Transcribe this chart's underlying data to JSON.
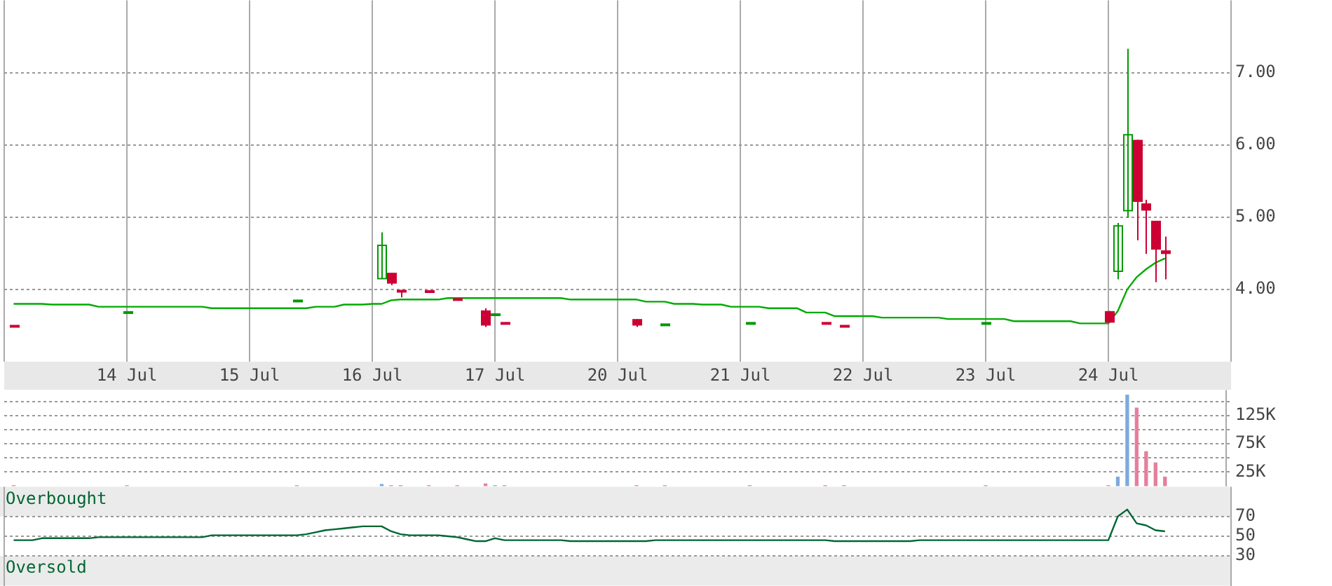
{
  "chart_data": [
    {
      "type": "candlestick",
      "categories": [
        null,
        null,
        null,
        null,
        null,
        null,
        null,
        null,
        null,
        null,
        null,
        null,
        null,
        "14 Jul",
        null,
        null,
        null,
        null,
        null,
        null,
        null,
        null,
        null,
        null,
        null,
        null,
        "15 Jul",
        null,
        null,
        null,
        null,
        null,
        null,
        null,
        null,
        null,
        null,
        null,
        null,
        "16 Jul",
        null,
        null,
        null,
        null,
        null,
        null,
        null,
        null,
        null,
        null,
        null,
        null,
        "17 Jul",
        null,
        null,
        null,
        null,
        null,
        null,
        null,
        null,
        null,
        null,
        null,
        null,
        "20 Jul",
        null,
        null,
        null,
        null,
        null,
        null,
        null,
        null,
        null,
        null,
        null,
        null,
        "21 Jul",
        null,
        null,
        null,
        null,
        null,
        null,
        null,
        null,
        null,
        null,
        null,
        null,
        "22 Jul",
        null,
        null,
        null,
        null,
        null,
        null,
        null,
        null,
        null,
        null,
        null,
        null,
        "23 Jul",
        null,
        null,
        null,
        null,
        null,
        null,
        null,
        null,
        null,
        null,
        null,
        null,
        "24 Jul",
        null,
        null,
        null,
        null,
        null,
        null,
        null,
        null,
        null,
        null,
        null,
        null,
        null
      ],
      "ohlc": [
        null,
        [
          3.49,
          3.49,
          3.49,
          3.49
        ],
        null,
        null,
        null,
        null,
        null,
        null,
        null,
        null,
        null,
        null,
        null,
        [
          3.68,
          3.68,
          3.68,
          3.68
        ],
        null,
        null,
        null,
        null,
        null,
        null,
        null,
        null,
        null,
        null,
        null,
        null,
        null,
        null,
        null,
        null,
        null,
        [
          3.84,
          3.84,
          3.84,
          3.84
        ],
        null,
        null,
        null,
        null,
        null,
        null,
        null,
        null,
        [
          4.15,
          4.79,
          4.15,
          4.61
        ],
        [
          4.23,
          4.23,
          4.06,
          4.08
        ],
        [
          3.99,
          3.99,
          3.89,
          3.96
        ],
        null,
        null,
        [
          3.97,
          3.97,
          3.97,
          3.97
        ],
        null,
        null,
        [
          3.87,
          3.87,
          3.85,
          3.85
        ],
        null,
        null,
        [
          3.71,
          3.74,
          3.48,
          3.5
        ],
        [
          3.65,
          3.65,
          3.65,
          3.65
        ],
        [
          3.53,
          3.53,
          3.53,
          3.53
        ],
        null,
        null,
        null,
        null,
        null,
        null,
        null,
        null,
        null,
        null,
        null,
        null,
        null,
        [
          3.59,
          3.59,
          3.48,
          3.5
        ],
        null,
        null,
        [
          3.51,
          3.51,
          3.51,
          3.51
        ],
        null,
        null,
        null,
        null,
        null,
        null,
        null,
        null,
        [
          3.53,
          3.53,
          3.53,
          3.53
        ],
        null,
        null,
        null,
        null,
        null,
        null,
        null,
        [
          3.53,
          3.53,
          3.53,
          3.53
        ],
        null,
        [
          3.49,
          3.49,
          3.49,
          3.49
        ],
        null,
        null,
        null,
        null,
        null,
        null,
        null,
        null,
        null,
        null,
        null,
        null,
        null,
        null,
        [
          3.53,
          3.53,
          3.53,
          3.53
        ],
        null,
        null,
        null,
        null,
        null,
        null,
        null,
        null,
        null,
        null,
        null,
        null,
        [
          3.7,
          3.7,
          3.54,
          3.54
        ],
        [
          4.25,
          4.92,
          4.14,
          4.88
        ],
        [
          5.09,
          7.33,
          4.99,
          6.14
        ],
        [
          6.07,
          6.07,
          4.68,
          5.21
        ],
        [
          5.19,
          5.24,
          4.49,
          5.09
        ],
        [
          4.95,
          4.95,
          4.1,
          4.55
        ],
        [
          4.54,
          4.73,
          4.14,
          4.49
        ],
        null,
        null,
        null,
        null,
        null,
        null,
        null
      ],
      "colors": [
        null,
        "#cc0033",
        null,
        null,
        null,
        null,
        null,
        null,
        null,
        null,
        null,
        null,
        null,
        "#009900",
        null,
        null,
        null,
        null,
        null,
        null,
        null,
        null,
        null,
        null,
        null,
        null,
        null,
        null,
        null,
        null,
        null,
        "#009900",
        null,
        null,
        null,
        null,
        null,
        null,
        null,
        null,
        "#009900",
        "#cc0033",
        "#cc0033",
        null,
        null,
        "#cc0033",
        null,
        null,
        "#cc0033",
        null,
        null,
        "#cc0033",
        "#009900",
        "#cc0033",
        null,
        null,
        null,
        null,
        null,
        null,
        null,
        null,
        null,
        null,
        null,
        null,
        null,
        "#cc0033",
        null,
        null,
        "#009900",
        null,
        null,
        null,
        null,
        null,
        null,
        null,
        null,
        "#009900",
        null,
        null,
        null,
        null,
        null,
        null,
        null,
        "#cc0033",
        null,
        "#cc0033",
        null,
        null,
        null,
        null,
        null,
        null,
        null,
        null,
        null,
        null,
        null,
        null,
        null,
        null,
        "#009900",
        null,
        null,
        null,
        null,
        null,
        null,
        null,
        null,
        null,
        null,
        null,
        null,
        "#cc0033",
        "#009900",
        "#009900",
        "#cc0033",
        "#cc0033",
        "#cc0033",
        "#cc0033",
        null,
        null,
        null,
        null,
        null,
        null,
        null
      ],
      "series": [
        {
          "type": "line",
          "color": "#00aa00",
          "values": [
            null,
            3.8,
            3.8,
            3.8,
            3.8,
            3.79,
            3.79,
            3.79,
            3.79,
            3.79,
            3.76,
            3.76,
            3.76,
            3.76,
            3.76,
            3.76,
            3.76,
            3.76,
            3.76,
            3.76,
            3.76,
            3.76,
            3.74,
            3.74,
            3.74,
            3.74,
            3.74,
            3.74,
            3.74,
            3.74,
            3.74,
            3.74,
            3.74,
            3.76,
            3.76,
            3.76,
            3.79,
            3.79,
            3.79,
            3.8,
            3.8,
            3.85,
            3.86,
            3.86,
            3.86,
            3.86,
            3.86,
            3.88,
            3.88,
            3.88,
            3.88,
            3.88,
            3.88,
            3.88,
            3.88,
            3.88,
            3.88,
            3.88,
            3.88,
            3.88,
            3.86,
            3.86,
            3.86,
            3.86,
            3.86,
            3.86,
            3.86,
            3.86,
            3.83,
            3.83,
            3.83,
            3.8,
            3.8,
            3.8,
            3.79,
            3.79,
            3.79,
            3.76,
            3.76,
            3.76,
            3.76,
            3.74,
            3.74,
            3.74,
            3.74,
            3.68,
            3.68,
            3.68,
            3.63,
            3.63,
            3.63,
            3.63,
            3.63,
            3.61,
            3.61,
            3.61,
            3.61,
            3.61,
            3.61,
            3.61,
            3.59,
            3.59,
            3.59,
            3.59,
            3.59,
            3.59,
            3.59,
            3.56,
            3.56,
            3.56,
            3.56,
            3.56,
            3.56,
            3.56,
            3.53,
            3.53,
            3.53,
            3.53,
            3.7,
            4.0,
            4.17,
            4.28,
            4.37,
            4.43,
            null,
            null,
            null,
            null,
            null,
            null,
            null
          ]
        }
      ],
      "marker": "none",
      "ylim": [
        3,
        8
      ],
      "yticks": [
        {
          "value": 4,
          "label": "4.00"
        },
        {
          "value": 5,
          "label": "5.00"
        },
        {
          "value": 6,
          "label": "6.00"
        },
        {
          "value": 7,
          "label": "7.00"
        }
      ],
      "grid": true,
      "legend": false
    },
    {
      "type": "bar",
      "categories": [
        null,
        null,
        null,
        null,
        null,
        null,
        null,
        null,
        null,
        null,
        null,
        null,
        null,
        null,
        null,
        null,
        null,
        null,
        null,
        null,
        null,
        null,
        null,
        null,
        null,
        null,
        null,
        null,
        null,
        null,
        null,
        null,
        null,
        null,
        null,
        null,
        null,
        null,
        null,
        null,
        null,
        null,
        null,
        null,
        null,
        null,
        null,
        null,
        null,
        null,
        null,
        null,
        null,
        null,
        null,
        null,
        null,
        null,
        null,
        null,
        null,
        null,
        null,
        null,
        null,
        null,
        null,
        null,
        null,
        null,
        null,
        null,
        null,
        null,
        null,
        null,
        null,
        null,
        null,
        null,
        null,
        null,
        null,
        null,
        null,
        null,
        null,
        null,
        null,
        null,
        null,
        null,
        null,
        null,
        null,
        null,
        null,
        null,
        null,
        null,
        null,
        null,
        null,
        null,
        null,
        null,
        null,
        null,
        null,
        null,
        null,
        null,
        null,
        null,
        null,
        null,
        null,
        null,
        null,
        null,
        null,
        null,
        null,
        null,
        null,
        null,
        null,
        null,
        null,
        null,
        null
      ],
      "values": [
        null,
        1000,
        null,
        null,
        null,
        null,
        null,
        null,
        null,
        null,
        null,
        null,
        null,
        1000,
        null,
        null,
        null,
        null,
        null,
        null,
        null,
        null,
        null,
        null,
        null,
        null,
        null,
        null,
        null,
        null,
        null,
        1000,
        null,
        null,
        null,
        null,
        null,
        null,
        null,
        null,
        3000,
        1000,
        1000,
        null,
        null,
        1000,
        null,
        null,
        1000,
        null,
        null,
        4000,
        1000,
        1000,
        null,
        null,
        null,
        null,
        null,
        null,
        null,
        null,
        null,
        null,
        null,
        null,
        null,
        1000,
        null,
        null,
        1000,
        null,
        null,
        null,
        null,
        null,
        null,
        null,
        null,
        1000,
        null,
        null,
        null,
        null,
        null,
        null,
        null,
        1000,
        null,
        1000,
        null,
        null,
        null,
        null,
        null,
        null,
        null,
        null,
        null,
        null,
        null,
        null,
        null,
        null,
        1000,
        null,
        null,
        null,
        null,
        null,
        null,
        null,
        null,
        null,
        null,
        null,
        null,
        1000,
        16000,
        161000,
        138000,
        61000,
        41000,
        16000,
        null,
        null,
        null,
        null,
        null,
        null,
        null
      ],
      "colors": [
        null,
        "#e57f9d",
        null,
        null,
        null,
        null,
        null,
        null,
        null,
        null,
        null,
        null,
        null,
        "#7eaadc",
        null,
        null,
        null,
        null,
        null,
        null,
        null,
        null,
        null,
        null,
        null,
        null,
        null,
        null,
        null,
        null,
        null,
        "#7eaadc",
        null,
        null,
        null,
        null,
        null,
        null,
        null,
        null,
        "#7eaadc",
        "#e57f9d",
        "#e57f9d",
        null,
        null,
        "#e57f9d",
        null,
        null,
        "#e57f9d",
        null,
        null,
        "#e57f9d",
        "#7eaadc",
        "#e57f9d",
        null,
        null,
        null,
        null,
        null,
        null,
        null,
        null,
        null,
        null,
        null,
        null,
        null,
        "#e57f9d",
        null,
        null,
        "#7eaadc",
        null,
        null,
        null,
        null,
        null,
        null,
        null,
        null,
        "#7eaadc",
        null,
        null,
        null,
        null,
        null,
        null,
        null,
        "#e57f9d",
        null,
        "#e57f9d",
        null,
        null,
        null,
        null,
        null,
        null,
        null,
        null,
        null,
        null,
        null,
        null,
        null,
        null,
        "#7eaadc",
        null,
        null,
        null,
        null,
        null,
        null,
        null,
        null,
        null,
        null,
        null,
        null,
        "#e57f9d",
        "#7eaadc",
        "#7eaadc",
        "#e57f9d",
        "#e57f9d",
        "#e57f9d",
        "#e57f9d",
        null,
        null,
        null,
        null,
        null,
        null,
        null
      ],
      "ylim": [
        0,
        170000
      ],
      "yticks": [
        {
          "value": 25000,
          "label": "25K"
        },
        {
          "value": 50000,
          "label": null
        },
        {
          "value": 75000,
          "label": "75K"
        },
        {
          "value": 100000,
          "label": null
        },
        {
          "value": 125000,
          "label": "125K"
        },
        {
          "value": 150000,
          "label": null
        }
      ],
      "grid": true,
      "legend": false,
      "tick_labels": "y"
    },
    {
      "type": "line",
      "color": "#006633",
      "categories": [
        null,
        null,
        null,
        null,
        null,
        null,
        null,
        null,
        null,
        null,
        null,
        null,
        null,
        null,
        null,
        null,
        null,
        null,
        null,
        null,
        null,
        null,
        null,
        null,
        null,
        null,
        null,
        null,
        null,
        null,
        null,
        null,
        null,
        null,
        null,
        null,
        null,
        null,
        null,
        null,
        null,
        null,
        null,
        null,
        null,
        null,
        null,
        null,
        null,
        null,
        null,
        null,
        null,
        null,
        null,
        null,
        null,
        null,
        null,
        null,
        null,
        null,
        null,
        null,
        null,
        null,
        null,
        null,
        null,
        null,
        null,
        null,
        null,
        null,
        null,
        null,
        null,
        null,
        null,
        null,
        null,
        null,
        null,
        null,
        null,
        null,
        null,
        null,
        null,
        null,
        null,
        null,
        null,
        null,
        null,
        null,
        null,
        null,
        null,
        null,
        null,
        null,
        null,
        null,
        null,
        null,
        null,
        null,
        null,
        null,
        null,
        null,
        null,
        null,
        null,
        null,
        null,
        null,
        null,
        null,
        null,
        null,
        null,
        null,
        null,
        null,
        null,
        null,
        null,
        null,
        null
      ],
      "values": [
        null,
        46,
        46,
        46,
        48,
        48,
        48,
        48,
        48,
        48,
        49,
        49,
        49,
        49,
        49,
        49,
        49,
        49,
        49,
        49,
        49,
        49,
        51,
        51,
        51,
        51,
        51,
        51,
        51,
        51,
        51,
        51,
        52,
        54,
        56,
        57,
        58,
        59,
        60,
        60,
        60,
        55,
        52,
        51,
        51,
        51,
        51,
        50,
        49,
        47,
        45,
        45,
        48,
        46,
        46,
        46,
        46,
        46,
        46,
        46,
        45,
        45,
        45,
        45,
        45,
        45,
        45,
        45,
        45,
        46,
        46,
        46,
        46,
        46,
        46,
        46,
        46,
        46,
        46,
        46,
        46,
        46,
        46,
        46,
        46,
        46,
        46,
        46,
        45,
        45,
        45,
        45,
        45,
        45,
        45,
        45,
        45,
        46,
        46,
        46,
        46,
        46,
        46,
        46,
        46,
        46,
        46,
        46,
        46,
        46,
        46,
        46,
        46,
        46,
        46,
        46,
        46,
        46,
        70,
        77,
        63,
        61,
        56,
        55,
        null,
        null,
        null,
        null,
        null,
        null,
        null
      ],
      "marker": "none",
      "ylim": [
        0,
        100
      ],
      "yticks": [
        30,
        50,
        70
      ],
      "grid": true,
      "legend": false,
      "tick_labels": "y",
      "bands": [
        {
          "axis": "y",
          "from": 70,
          "to": 100,
          "label": "Overbought",
          "color": "#ebebeb"
        },
        {
          "axis": "y",
          "from": 0,
          "to": 30,
          "label": "Oversold",
          "color": "#ebebeb"
        }
      ]
    }
  ]
}
